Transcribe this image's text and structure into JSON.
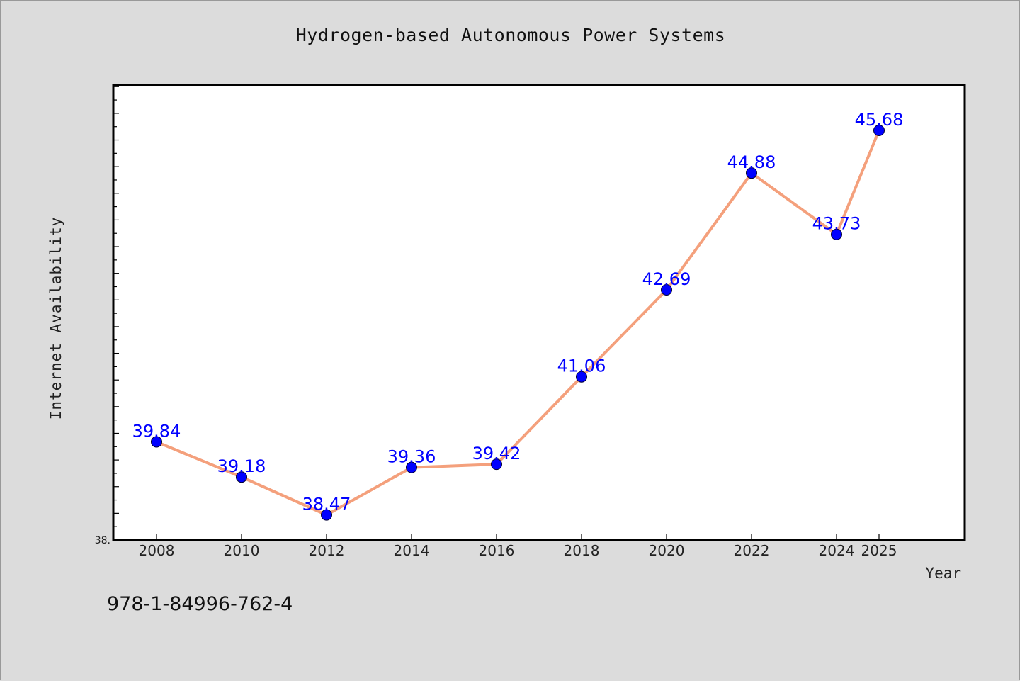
{
  "chart_data": {
    "type": "line",
    "title": "Hydrogen-based Autonomous Power Systems",
    "xlabel": "Year",
    "ylabel": "Internet Availability",
    "x": [
      "2008",
      "2010",
      "2012",
      "2014",
      "2016",
      "2018",
      "2020",
      "2022",
      "2024",
      "2025"
    ],
    "series": [
      {
        "values": [
          39.84,
          39.18,
          38.47,
          39.36,
          39.42,
          41.06,
          42.69,
          44.88,
          43.73,
          45.68
        ]
      }
    ],
    "data_labels": [
      "39.84",
      "39.18",
      "38.47",
      "39.36",
      "39.42",
      "41.06",
      "42.69",
      "44.88",
      "43.73",
      "45.68"
    ],
    "ylim": [
      38.0,
      46.53
    ],
    "y_tick_label": "38.",
    "grid": false,
    "line_color": "#f4a07c",
    "marker_color": "#0000ff",
    "label_color": "#0000ff"
  },
  "footer": {
    "isbn": "978-1-84996-762-4"
  }
}
